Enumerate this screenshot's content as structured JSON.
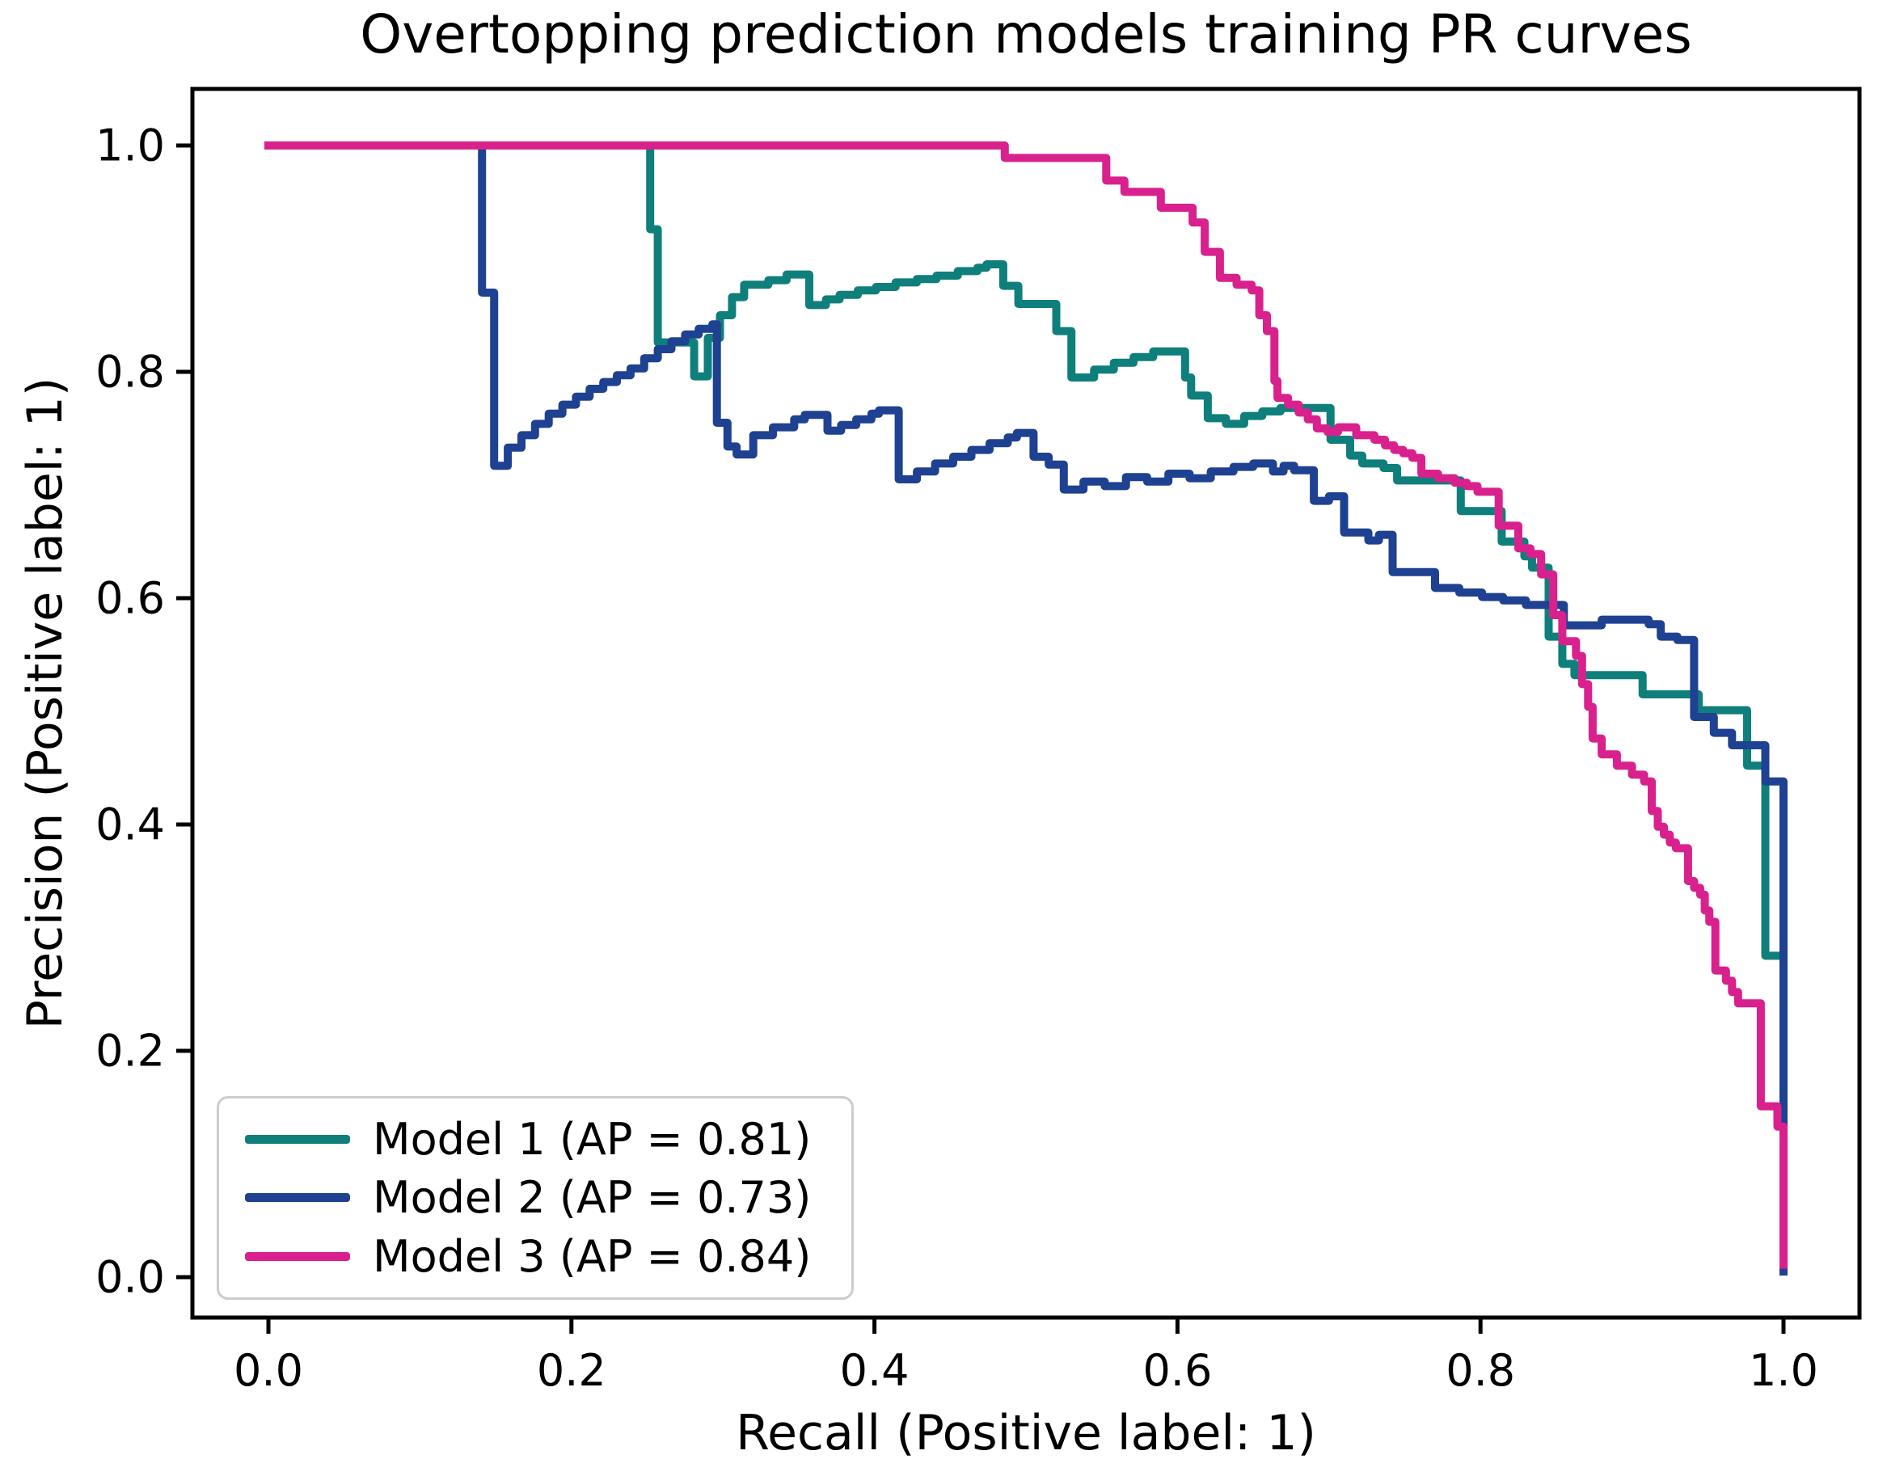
{
  "chart_data": {
    "type": "line",
    "drawstyle": "steps-post",
    "title": "Overtopping prediction models training PR curves",
    "xlabel": "Recall (Positive label: 1)",
    "ylabel": "Precision (Positive label: 1)",
    "xlim": [
      -0.05,
      1.05
    ],
    "ylim": [
      -0.036,
      1.05
    ],
    "grid": false,
    "xticks": [
      0.0,
      0.2,
      0.4,
      0.6,
      0.8,
      1.0
    ],
    "x_tick_labels": [
      "0.0",
      "0.2",
      "0.4",
      "0.6",
      "0.8",
      "1.0"
    ],
    "yticks": [
      0.0,
      0.2,
      0.4,
      0.6,
      0.8,
      1.0
    ],
    "y_tick_labels": [
      "0.0",
      "0.2",
      "0.4",
      "0.6",
      "0.8",
      "1.0"
    ],
    "legend_position": "lower left",
    "colors": {
      "spine": "#000000",
      "text": "#000000",
      "legend_border": "#cccccc"
    },
    "line_width": 10,
    "series": [
      {
        "name": "Model 1 (AP = 0.81)",
        "ap": 0.81,
        "color": "#0f7f7b",
        "points": [
          [
            0.0,
            1.0
          ],
          [
            0.252,
            0.926
          ],
          [
            0.257,
            0.826
          ],
          [
            0.281,
            0.796
          ],
          [
            0.29,
            0.83
          ],
          [
            0.298,
            0.85
          ],
          [
            0.306,
            0.866
          ],
          [
            0.314,
            0.877
          ],
          [
            0.33,
            0.881
          ],
          [
            0.342,
            0.886
          ],
          [
            0.357,
            0.859
          ],
          [
            0.368,
            0.864
          ],
          [
            0.377,
            0.868
          ],
          [
            0.389,
            0.872
          ],
          [
            0.401,
            0.875
          ],
          [
            0.414,
            0.879
          ],
          [
            0.428,
            0.882
          ],
          [
            0.441,
            0.885
          ],
          [
            0.455,
            0.889
          ],
          [
            0.468,
            0.892
          ],
          [
            0.474,
            0.895
          ],
          [
            0.485,
            0.876
          ],
          [
            0.495,
            0.86
          ],
          [
            0.52,
            0.836
          ],
          [
            0.53,
            0.795
          ],
          [
            0.545,
            0.802
          ],
          [
            0.558,
            0.808
          ],
          [
            0.571,
            0.813
          ],
          [
            0.584,
            0.818
          ],
          [
            0.605,
            0.795
          ],
          [
            0.609,
            0.779
          ],
          [
            0.62,
            0.759
          ],
          [
            0.632,
            0.754
          ],
          [
            0.644,
            0.761
          ],
          [
            0.656,
            0.765
          ],
          [
            0.668,
            0.768
          ],
          [
            0.701,
            0.74
          ],
          [
            0.714,
            0.726
          ],
          [
            0.722,
            0.719
          ],
          [
            0.736,
            0.715
          ],
          [
            0.745,
            0.704
          ],
          [
            0.787,
            0.677
          ],
          [
            0.814,
            0.65
          ],
          [
            0.829,
            0.637
          ],
          [
            0.834,
            0.627
          ],
          [
            0.845,
            0.566
          ],
          [
            0.854,
            0.542
          ],
          [
            0.862,
            0.532
          ],
          [
            0.907,
            0.515
          ],
          [
            0.944,
            0.501
          ],
          [
            0.976,
            0.452
          ],
          [
            0.988,
            0.284
          ],
          [
            1.0,
            0.284
          ]
        ]
      },
      {
        "name": "Model 2 (AP = 0.73)",
        "ap": 0.73,
        "color": "#1e4191",
        "points": [
          [
            0.0,
            1.0
          ],
          [
            0.141,
            0.87
          ],
          [
            0.149,
            0.717
          ],
          [
            0.158,
            0.733
          ],
          [
            0.167,
            0.744
          ],
          [
            0.176,
            0.754
          ],
          [
            0.185,
            0.763
          ],
          [
            0.194,
            0.771
          ],
          [
            0.203,
            0.778
          ],
          [
            0.212,
            0.785
          ],
          [
            0.221,
            0.791
          ],
          [
            0.23,
            0.797
          ],
          [
            0.239,
            0.803
          ],
          [
            0.248,
            0.812
          ],
          [
            0.257,
            0.82
          ],
          [
            0.266,
            0.827
          ],
          [
            0.275,
            0.833
          ],
          [
            0.284,
            0.838
          ],
          [
            0.293,
            0.842
          ],
          [
            0.296,
            0.755
          ],
          [
            0.303,
            0.734
          ],
          [
            0.309,
            0.727
          ],
          [
            0.32,
            0.744
          ],
          [
            0.333,
            0.751
          ],
          [
            0.347,
            0.758
          ],
          [
            0.354,
            0.762
          ],
          [
            0.369,
            0.748
          ],
          [
            0.378,
            0.753
          ],
          [
            0.388,
            0.758
          ],
          [
            0.398,
            0.763
          ],
          [
            0.403,
            0.766
          ],
          [
            0.416,
            0.705
          ],
          [
            0.428,
            0.712
          ],
          [
            0.44,
            0.719
          ],
          [
            0.452,
            0.725
          ],
          [
            0.464,
            0.731
          ],
          [
            0.476,
            0.737
          ],
          [
            0.488,
            0.742
          ],
          [
            0.494,
            0.746
          ],
          [
            0.505,
            0.725
          ],
          [
            0.515,
            0.718
          ],
          [
            0.525,
            0.696
          ],
          [
            0.538,
            0.703
          ],
          [
            0.552,
            0.699
          ],
          [
            0.566,
            0.707
          ],
          [
            0.58,
            0.703
          ],
          [
            0.594,
            0.71
          ],
          [
            0.608,
            0.706
          ],
          [
            0.622,
            0.712
          ],
          [
            0.637,
            0.716
          ],
          [
            0.65,
            0.719
          ],
          [
            0.663,
            0.712
          ],
          [
            0.67,
            0.717
          ],
          [
            0.677,
            0.713
          ],
          [
            0.69,
            0.686
          ],
          [
            0.7,
            0.69
          ],
          [
            0.71,
            0.658
          ],
          [
            0.726,
            0.651
          ],
          [
            0.733,
            0.656
          ],
          [
            0.742,
            0.623
          ],
          [
            0.77,
            0.609
          ],
          [
            0.786,
            0.605
          ],
          [
            0.801,
            0.601
          ],
          [
            0.815,
            0.598
          ],
          [
            0.83,
            0.594
          ],
          [
            0.855,
            0.576
          ],
          [
            0.88,
            0.581
          ],
          [
            0.911,
            0.577
          ],
          [
            0.919,
            0.566
          ],
          [
            0.93,
            0.563
          ],
          [
            0.941,
            0.495
          ],
          [
            0.954,
            0.481
          ],
          [
            0.966,
            0.47
          ],
          [
            0.988,
            0.438
          ],
          [
            1.0,
            0.005
          ]
        ]
      },
      {
        "name": "Model 3 (AP = 0.84)",
        "ap": 0.84,
        "color": "#d9218e",
        "points": [
          [
            0.0,
            1.0
          ],
          [
            0.486,
            0.989
          ],
          [
            0.553,
            0.969
          ],
          [
            0.565,
            0.959
          ],
          [
            0.589,
            0.945
          ],
          [
            0.61,
            0.932
          ],
          [
            0.618,
            0.906
          ],
          [
            0.628,
            0.883
          ],
          [
            0.639,
            0.877
          ],
          [
            0.649,
            0.872
          ],
          [
            0.654,
            0.85
          ],
          [
            0.659,
            0.836
          ],
          [
            0.664,
            0.792
          ],
          [
            0.666,
            0.777
          ],
          [
            0.673,
            0.771
          ],
          [
            0.68,
            0.764
          ],
          [
            0.686,
            0.758
          ],
          [
            0.692,
            0.75
          ],
          [
            0.699,
            0.747
          ],
          [
            0.706,
            0.751
          ],
          [
            0.718,
            0.744
          ],
          [
            0.73,
            0.74
          ],
          [
            0.737,
            0.735
          ],
          [
            0.743,
            0.731
          ],
          [
            0.749,
            0.728
          ],
          [
            0.755,
            0.724
          ],
          [
            0.761,
            0.71
          ],
          [
            0.772,
            0.706
          ],
          [
            0.783,
            0.702
          ],
          [
            0.791,
            0.699
          ],
          [
            0.798,
            0.694
          ],
          [
            0.812,
            0.664
          ],
          [
            0.825,
            0.644
          ],
          [
            0.833,
            0.639
          ],
          [
            0.84,
            0.621
          ],
          [
            0.848,
            0.585
          ],
          [
            0.854,
            0.562
          ],
          [
            0.863,
            0.549
          ],
          [
            0.867,
            0.524
          ],
          [
            0.871,
            0.504
          ],
          [
            0.874,
            0.476
          ],
          [
            0.88,
            0.462
          ],
          [
            0.89,
            0.452
          ],
          [
            0.9,
            0.444
          ],
          [
            0.908,
            0.438
          ],
          [
            0.913,
            0.412
          ],
          [
            0.917,
            0.398
          ],
          [
            0.921,
            0.391
          ],
          [
            0.925,
            0.384
          ],
          [
            0.929,
            0.379
          ],
          [
            0.937,
            0.35
          ],
          [
            0.941,
            0.344
          ],
          [
            0.945,
            0.338
          ],
          [
            0.948,
            0.324
          ],
          [
            0.951,
            0.314
          ],
          [
            0.955,
            0.271
          ],
          [
            0.962,
            0.262
          ],
          [
            0.966,
            0.252
          ],
          [
            0.97,
            0.242
          ],
          [
            0.985,
            0.151
          ],
          [
            0.996,
            0.133
          ],
          [
            1.0,
            0.011
          ]
        ]
      }
    ]
  }
}
